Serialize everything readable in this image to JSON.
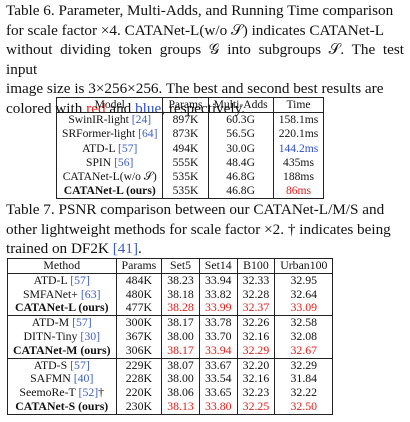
{
  "table6": {
    "caption": {
      "l1": "Table 6.  Parameter, Multi-Adds, and Running Time comparison",
      "l2": "for scale factor ×4.  CATANet-L(w/o 𝒮) indicates CATANet-L",
      "l3": "without dividing token groups 𝒢 into subgroups 𝒮. The test input",
      "l4a": "image size is 3×256×256.  The best and second best results are",
      "l5a": "colored with ",
      "l5red": "red",
      "l5b": " and ",
      "l5blue": "blue",
      "l5c": ", respectively."
    },
    "headers": [
      "Model",
      "Params",
      "Multi-Adds",
      "Time"
    ],
    "rows": [
      {
        "model": "SwinIR-light ",
        "ref": "[24]",
        "params": "897K",
        "madds": "60.3G",
        "time": "158.1ms"
      },
      {
        "model": "SRFormer-light ",
        "ref": "[64]",
        "params": "873K",
        "madds": "56.5G",
        "time": "220.1ms"
      },
      {
        "model": "ATD-L ",
        "ref": "[57]",
        "params": "494K",
        "madds": "30.0G",
        "time": "144.2ms"
      },
      {
        "model": "SPIN ",
        "ref": "[56]",
        "params": "555K",
        "madds": "48.4G",
        "time": "435ms"
      },
      {
        "model": "CATANet-L(w/o 𝒮)",
        "ref": "",
        "params": "535K",
        "madds": "46.8G",
        "time": "188ms"
      },
      {
        "model": "CATANet-L (ours)",
        "ref": "",
        "params": "535K",
        "madds": "46.8G",
        "time": "86ms"
      }
    ]
  },
  "table7": {
    "caption": {
      "l1": "Table 7.  PSNR comparison between our CATANet-L/M/S and",
      "l2": "other lightweight methods for scale factor ×2.  † indicates being",
      "l3a": "trained on DF2K ",
      "l3ref": "[41]",
      "l3b": "."
    },
    "headers": [
      "Method",
      "Params",
      "Set5",
      "Set14",
      "B100",
      "Urban100"
    ],
    "groups": [
      [
        {
          "model": "ATD-L ",
          "ref": "[57]",
          "params": "484K",
          "set5": "38.23",
          "set14": "33.94",
          "b100": "32.33",
          "urban": "32.95"
        },
        {
          "model": "SMFANet+ ",
          "ref": "[63]",
          "params": "480K",
          "set5": "38.18",
          "set14": "33.82",
          "b100": "32.28",
          "urban": "32.64"
        },
        {
          "model": "CATANet-L (ours)",
          "ref": "",
          "params": "477K",
          "set5": "38.28",
          "set14": "33.99",
          "b100": "32.37",
          "urban": "33.09"
        }
      ],
      [
        {
          "model": "ATD-M ",
          "ref": "[57]",
          "params": "300K",
          "set5": "38.17",
          "set14": "33.78",
          "b100": "32.26",
          "urban": "32.58"
        },
        {
          "model": "DITN-Tiny ",
          "ref": "[30]",
          "params": "367K",
          "set5": "38.00",
          "set14": "33.70",
          "b100": "32.16",
          "urban": "32.08"
        },
        {
          "model": "CATANet-M (ours)",
          "ref": "",
          "params": "306K",
          "set5": "38.17",
          "set14": "33.94",
          "b100": "32.29",
          "urban": "32.67"
        }
      ],
      [
        {
          "model": "ATD-S ",
          "ref": "[57]",
          "params": "229K",
          "set5": "38.07",
          "set14": "33.67",
          "b100": "32.20",
          "urban": "32.29"
        },
        {
          "model": "SAFMN ",
          "ref": "[40]",
          "params": "228K",
          "set5": "38.00",
          "set14": "33.54",
          "b100": "32.16",
          "urban": "31.84"
        },
        {
          "model": "SeemoRe-T ",
          "ref": "[52]",
          "suffix": "†",
          "params": "220K",
          "set5": "38.06",
          "set14": "33.65",
          "b100": "32.23",
          "urban": "32.22"
        },
        {
          "model": "CATANet-S (ours)",
          "ref": "",
          "params": "230K",
          "set5": "38.13",
          "set14": "33.80",
          "b100": "32.25",
          "urban": "32.50"
        }
      ]
    ]
  },
  "colors": {
    "best": "#e0201b",
    "second": "#2d4fd0",
    "ref": "#3d5fbf"
  }
}
